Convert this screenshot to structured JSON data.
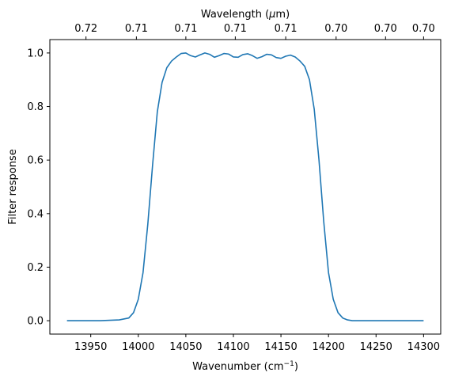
{
  "chart_data": {
    "type": "line",
    "xlabel": "Wavenumber (cm",
    "xlabel_sup": "−1",
    "xlabel_end": ")",
    "ylabel": "Filter response",
    "top_xlabel": "Wavelength (",
    "top_xlabel_mu": "μ",
    "top_xlabel_end": "m)",
    "xlim": [
      13907,
      14318
    ],
    "ylim": [
      -0.05,
      1.05
    ],
    "x_ticks": [
      13950,
      14000,
      14050,
      14100,
      14150,
      14200,
      14250,
      14300
    ],
    "y_ticks": [
      0.0,
      0.2,
      0.4,
      0.6,
      0.8,
      1.0
    ],
    "y_tick_labels": [
      "0.0",
      "0.2",
      "0.4",
      "0.6",
      "0.8",
      "1.0"
    ],
    "top_ticks": [
      13945,
      13998,
      14050,
      14102,
      14155,
      14208,
      14260,
      14300
    ],
    "top_tick_labels": [
      "0.72",
      "0.71",
      "0.71",
      "0.71",
      "0.71",
      "0.70",
      "0.70",
      "0.70"
    ],
    "grid": false,
    "line_color": "#1f77b4",
    "series": [
      {
        "x": [
          13925,
          13960,
          13980,
          13990,
          13995,
          14000,
          14005,
          14010,
          14015,
          14020,
          14025,
          14030,
          14035,
          14040,
          14045,
          14050,
          14055,
          14060,
          14065,
          14070,
          14075,
          14080,
          14085,
          14090,
          14095,
          14100,
          14105,
          14110,
          14115,
          14120,
          14125,
          14130,
          14135,
          14140,
          14145,
          14150,
          14155,
          14160,
          14165,
          14170,
          14175,
          14180,
          14185,
          14190,
          14195,
          14200,
          14205,
          14210,
          14215,
          14220,
          14225,
          14230,
          14235,
          14240,
          14245,
          14250,
          14260,
          14300
        ],
        "y": [
          0.0,
          0.0,
          0.003,
          0.01,
          0.03,
          0.08,
          0.18,
          0.36,
          0.58,
          0.78,
          0.89,
          0.945,
          0.97,
          0.985,
          0.998,
          1.0,
          0.99,
          0.985,
          0.993,
          1.0,
          0.995,
          0.984,
          0.99,
          0.998,
          0.996,
          0.985,
          0.984,
          0.994,
          0.997,
          0.99,
          0.98,
          0.986,
          0.995,
          0.993,
          0.983,
          0.98,
          0.988,
          0.992,
          0.985,
          0.97,
          0.95,
          0.9,
          0.79,
          0.6,
          0.37,
          0.18,
          0.08,
          0.03,
          0.01,
          0.003,
          0.0,
          0.0,
          0.0,
          0.0,
          0.0,
          0.0,
          0.0,
          0.0
        ]
      }
    ]
  }
}
